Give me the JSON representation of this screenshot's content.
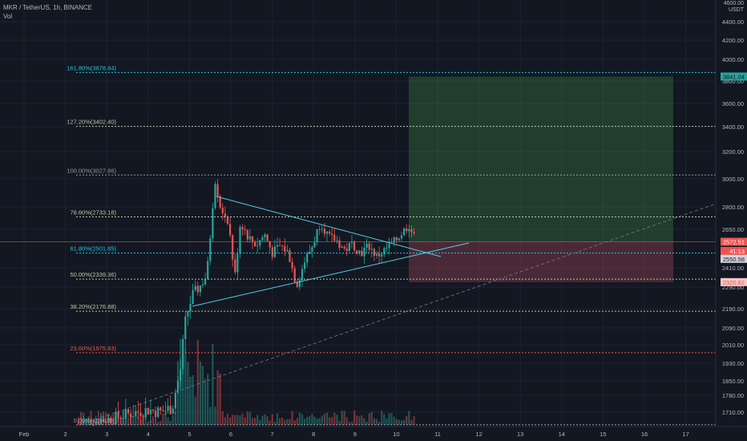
{
  "header": {
    "symbol": "MKR / TetherUS, 1h, BINANCE",
    "volume_label": "Vol"
  },
  "price_axis": {
    "top_ticks": [
      "4600.00",
      "USDT"
    ],
    "ticks": [
      4400,
      4200,
      4000,
      3800,
      3600,
      3400,
      3200,
      3000,
      2800,
      2650,
      2410,
      2290,
      2190,
      2090,
      2010,
      1930,
      1850,
      1780,
      1710
    ],
    "tick_labels": [
      "4400.00",
      "4200.00",
      "4000.00",
      "3800.00",
      "3600.00",
      "3400.00",
      "3200.00",
      "3000.00",
      "2800.00",
      "2650.00",
      "2410.00",
      "2290.00",
      "2190.00",
      "2090.00",
      "2010.00",
      "1930.00",
      "1850.00",
      "1780.00",
      "1710.00"
    ]
  },
  "time_axis": {
    "labels": [
      "Feb",
      "2",
      "3",
      "4",
      "5",
      "6",
      "7",
      "8",
      "9",
      "10",
      "11",
      "12",
      "13",
      "14",
      "15",
      "16",
      "17"
    ]
  },
  "price_tags": [
    {
      "label": "3841.04",
      "color": "#26a69a",
      "text_color": "#131722",
      "value": 3841.04
    },
    {
      "label": "2572.51",
      "color": "#ef5350",
      "text_color": "#ffffff",
      "value": 2572.51
    },
    {
      "label": "41:13",
      "color": "#ef5350",
      "text_color": "#ffffff",
      "value": 2515
    },
    {
      "label": "2550.58",
      "color": "#d1d4dc",
      "text_color": "#131722",
      "value": 2466
    },
    {
      "label": "2320.82",
      "color": "#f7c6c5",
      "text_color": "#ef5350",
      "value": 2320.82
    }
  ],
  "fib_levels": [
    {
      "label": "161.80%(3878.84)",
      "value": 3878.84,
      "color": "#26c6da"
    },
    {
      "label": "127.20%(3402.40)",
      "value": 3402.4,
      "color": "#b5c99a"
    },
    {
      "label": "100.00%(3027.86)",
      "value": 3027.86,
      "color": "#9598a1"
    },
    {
      "label": "78.60%(2733.18)",
      "value": 2733.18,
      "color": "#b5c99a"
    },
    {
      "label": "61.80%(2501.85)",
      "value": 2501.85,
      "color": "#26c6da"
    },
    {
      "label": "50.00%(2339.36)",
      "value": 2339.36,
      "color": "#b5c99a"
    },
    {
      "label": "38.20%(2176.88)",
      "value": 2176.88,
      "color": "#b5c99a"
    },
    {
      "label": "23.60%(1975.83)",
      "value": 1975.83,
      "color": "#ef5350"
    },
    {
      "label": "0.00%(1650.88)",
      "value": 1650.88,
      "color": "#9598a1"
    }
  ],
  "colors": {
    "background": "#131722",
    "grid": "#1e222d",
    "up": "#26a69a",
    "down": "#ef5350",
    "trendline": "#4dd0e1",
    "profit_zone": "#4caf50",
    "loss_zone": "#b34a5f",
    "axis_text": "#b2b5be"
  },
  "position": {
    "entry": 2572.51,
    "target": 3841.04,
    "stop": 2320.82
  }
}
